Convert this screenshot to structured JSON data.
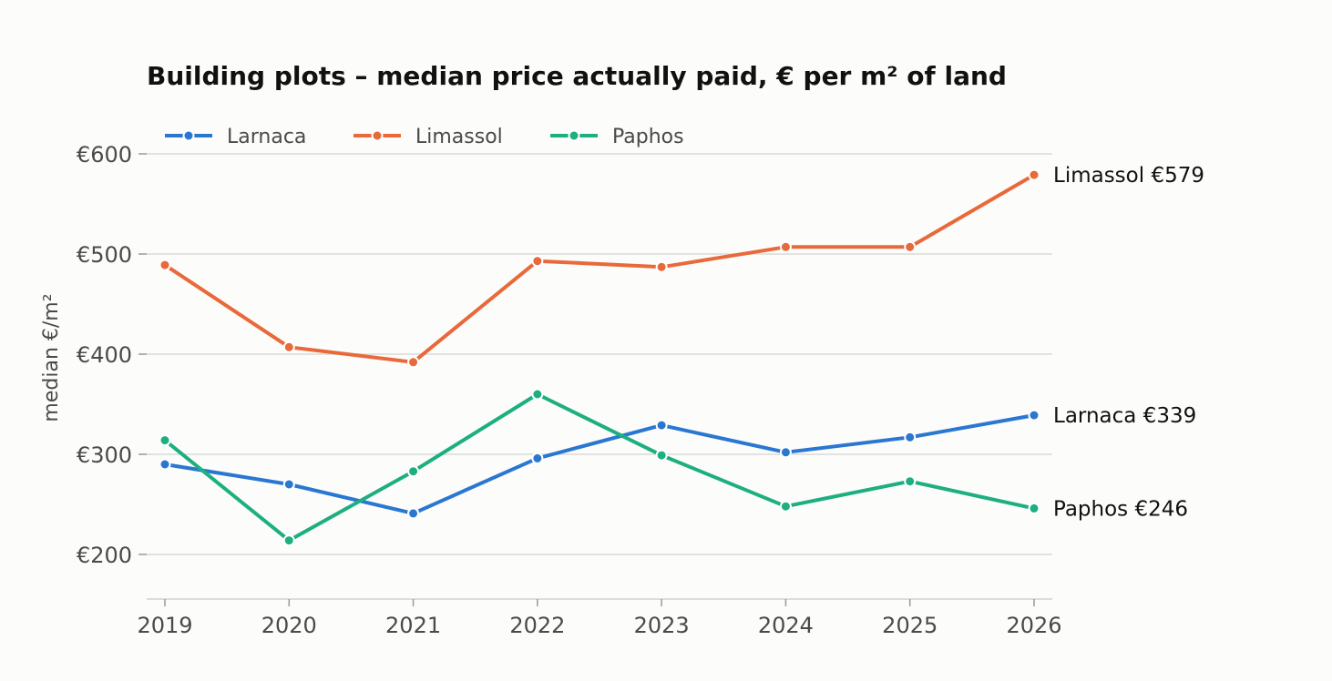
{
  "chart_data": {
    "type": "line",
    "title": "Building plots – median price actually paid, € per m² of land",
    "ylabel": "median €/m²",
    "xlabel": "",
    "x": [
      "2019",
      "2020",
      "2021",
      "2022",
      "2023",
      "2024",
      "2025",
      "2026"
    ],
    "ylim": [
      155,
      645
    ],
    "yticks": [
      200,
      300,
      400,
      500,
      600
    ],
    "ytick_labels": [
      "€200",
      "€300",
      "€400",
      "€500",
      "€600"
    ],
    "grid": "horizontal",
    "legend_position": "top-left",
    "series": [
      {
        "name": "Larnaca",
        "color": "#2a77d2",
        "values": [
          290,
          270,
          241,
          296,
          329,
          302,
          317,
          339
        ],
        "end_label": "Larnaca  €339"
      },
      {
        "name": "Limassol",
        "color": "#e8693a",
        "values": [
          489,
          407,
          392,
          493,
          487,
          507,
          507,
          579
        ],
        "end_label": "Limassol  €579"
      },
      {
        "name": "Paphos",
        "color": "#1daf80",
        "values": [
          314,
          214,
          283,
          360,
          299,
          248,
          273,
          246
        ],
        "end_label": "Paphos  €246"
      }
    ]
  }
}
